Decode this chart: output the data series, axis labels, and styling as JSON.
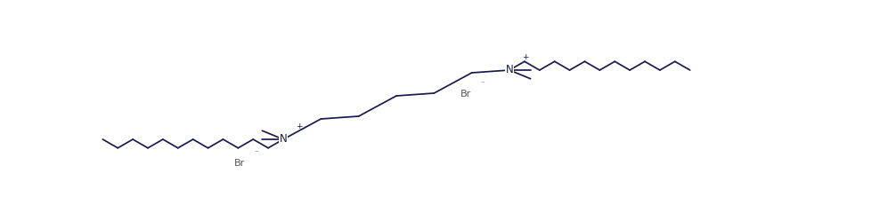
{
  "bg_color": "#ffffff",
  "line_color": "#1a1a50",
  "text_color": "#1a1a50",
  "br_color": "#555555",
  "figsize": [
    9.88,
    2.31
  ],
  "dpi": 100,
  "N1": [
    5.72,
    1.52
  ],
  "N2": [
    3.18,
    0.74
  ],
  "lw": 1.25,
  "bl": 0.195,
  "ang_deg": 30,
  "font_size_N": 8.5,
  "font_size_sup": 6.5
}
